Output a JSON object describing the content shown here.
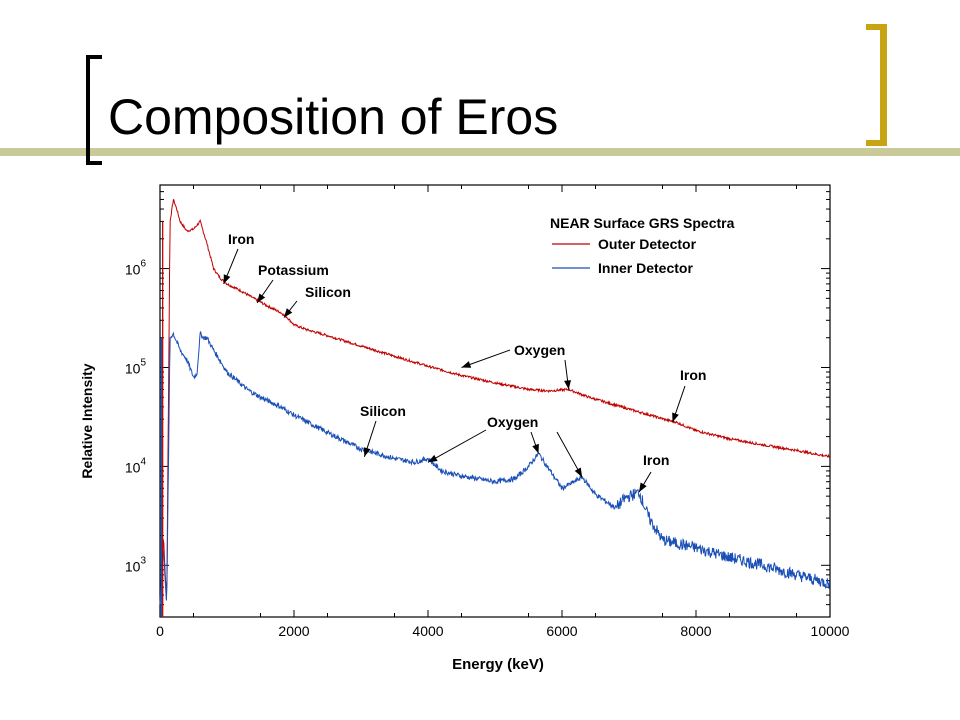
{
  "slide": {
    "title": "Composition of Eros",
    "accent_color": "#c8a412",
    "rule_color": "#c9c99a"
  },
  "chart_data": {
    "type": "line",
    "title": "",
    "xlabel": "Energy (keV)",
    "ylabel": "Relative Intensity",
    "xlim": [
      0,
      10000
    ],
    "ylim": [
      300,
      7000000
    ],
    "yscale": "log",
    "grid": false,
    "x_ticks": [
      "0",
      "2000",
      "4000",
      "6000",
      "8000",
      "10000"
    ],
    "y_ticks": [
      {
        "value": 1000,
        "base": "10",
        "exp": "3"
      },
      {
        "value": 10000,
        "base": "10",
        "exp": "4"
      },
      {
        "value": 100000,
        "base": "10",
        "exp": "5"
      },
      {
        "value": 1000000,
        "base": "10",
        "exp": "6"
      }
    ],
    "legend": {
      "title": "NEAR Surface GRS Spectra",
      "position": "top-right"
    },
    "series": [
      {
        "name": "Outer Detector",
        "color": "#c00000",
        "x": [
          0,
          50,
          100,
          150,
          200,
          250,
          300,
          400,
          500,
          600,
          700,
          800,
          900,
          1000,
          1200,
          1400,
          1600,
          1800,
          1900,
          2000,
          2200,
          2500,
          3000,
          3500,
          4000,
          4500,
          5000,
          5500,
          5800,
          6100,
          6400,
          7000,
          7600,
          7700,
          8000,
          8500,
          9000,
          9500,
          10000
        ],
        "y": [
          400,
          2000,
          400,
          3000000,
          5000000,
          4000000,
          3000000,
          2400000,
          2500000,
          3000000,
          1800000,
          1000000,
          800000,
          700000,
          600000,
          500000,
          420000,
          360000,
          320000,
          270000,
          240000,
          210000,
          165000,
          130000,
          103000,
          83000,
          70000,
          60000,
          58000,
          60000,
          50000,
          38000,
          29000,
          28000,
          23000,
          19000,
          16500,
          14500,
          12500
        ]
      },
      {
        "name": "Inner Detector",
        "color": "#1a4fb5",
        "x": [
          0,
          50,
          100,
          150,
          200,
          300,
          400,
          500,
          550,
          600,
          650,
          700,
          800,
          1000,
          1300,
          1500,
          1800,
          2000,
          2500,
          3000,
          3500,
          3800,
          4000,
          4200,
          4500,
          5000,
          5300,
          5500,
          5650,
          5800,
          6000,
          6150,
          6300,
          6500,
          6800,
          6950,
          7150,
          7300,
          7500,
          8000,
          8500,
          9000,
          9500,
          10000
        ],
        "y": [
          400,
          1500,
          400,
          200000,
          220000,
          150000,
          120000,
          80000,
          85000,
          220000,
          200000,
          200000,
          150000,
          90000,
          60000,
          50000,
          40000,
          33000,
          22000,
          15000,
          12000,
          11000,
          12000,
          9000,
          8000,
          7000,
          7500,
          10000,
          13500,
          9500,
          6000,
          6800,
          7800,
          5200,
          3800,
          4800,
          5500,
          3000,
          1800,
          1500,
          1200,
          1000,
          800,
          650
        ]
      }
    ],
    "annotations": [
      {
        "text": "Iron",
        "x": 950,
        "y": 700000
      },
      {
        "text": "Potassium",
        "x": 1450,
        "y": 450000
      },
      {
        "text": "Silicon",
        "x": 1850,
        "y": 320000
      },
      {
        "text": "Oxygen",
        "x": 4500,
        "y": 100000
      },
      {
        "text": "Oxygen",
        "x": 6100,
        "y": 60000
      },
      {
        "text": "Iron",
        "x": 7650,
        "y": 28000
      },
      {
        "text": "Silicon",
        "x": 3050,
        "y": 12500
      },
      {
        "text": "Oxygen",
        "x": 4000,
        "y": 11000
      },
      {
        "text": "Oxygen",
        "x": 5650,
        "y": 13500
      },
      {
        "text": "Oxygen",
        "x": 6300,
        "y": 7800
      },
      {
        "text": "Iron",
        "x": 7150,
        "y": 5500
      }
    ]
  }
}
